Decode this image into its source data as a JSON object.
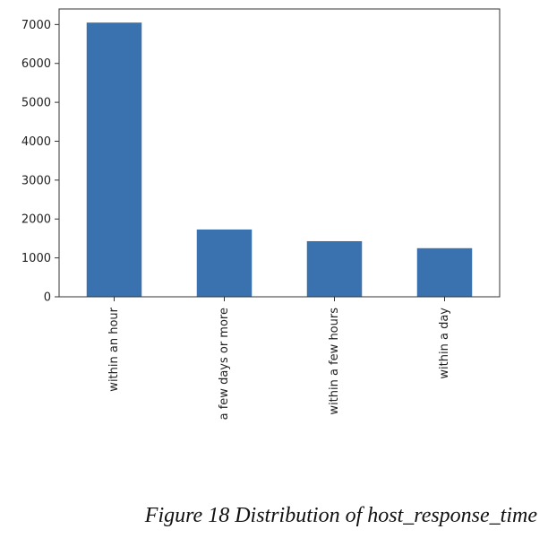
{
  "chart_data": {
    "type": "bar",
    "categories": [
      "within an hour",
      "a few days or more",
      "within a few hours",
      "within a day"
    ],
    "values": [
      7050,
      1730,
      1430,
      1250
    ],
    "title": "",
    "xlabel": "",
    "ylabel": "",
    "ylim": [
      0,
      7400
    ],
    "yticks": [
      0,
      1000,
      2000,
      3000,
      4000,
      5000,
      6000,
      7000
    ],
    "grid": false,
    "legend": "none",
    "bar_color": "#3a72b0"
  },
  "caption": "Figure 18 Distribution of host_response_time"
}
